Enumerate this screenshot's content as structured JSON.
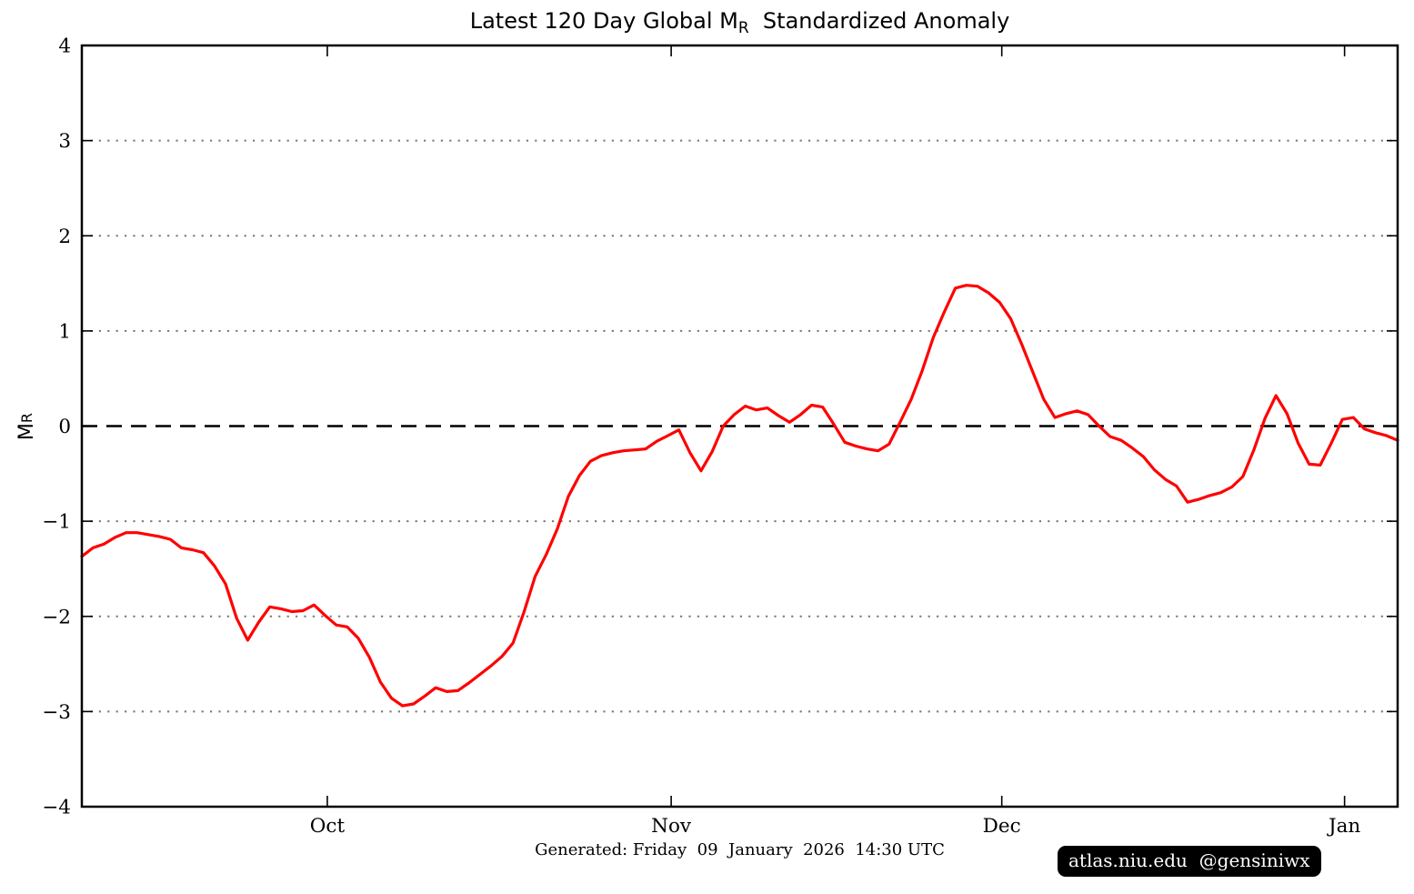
{
  "title": {
    "prefix": "Latest 120 Day Global M",
    "subscript": "R",
    "suffix": "  Standardized Anomaly"
  },
  "y_axis": {
    "label_main": "M",
    "label_subscript": "R"
  },
  "footer": {
    "generated": "Generated: Friday  09  January  2026  14:30 UTC",
    "badge": "atlas.niu.edu  @gensiniwx"
  },
  "colors": {
    "line": "#ff0000",
    "grid_dotted": "#787878",
    "zero_line": "#000000",
    "frame": "#000000",
    "badge_bg": "#000000",
    "badge_text": "#ffffff"
  },
  "chart_data": {
    "type": "line",
    "title": "Latest 120 Day Global M_R Standardized Anomaly",
    "xlabel": "",
    "ylabel": "M_R",
    "ylim": [
      -4,
      4
    ],
    "x_unit": "day index, 0-119 (daily, ~Sep 9 through Jan 7)",
    "x_tick_labels": [
      "Oct",
      "Nov",
      "Dec",
      "Jan"
    ],
    "x_tick_positions_days": [
      22.2,
      53.3,
      83.2,
      114.2
    ],
    "y_ticks": [
      -4,
      -3,
      -2,
      -1,
      0,
      1,
      2,
      3,
      4
    ],
    "y_tick_labels": [
      "−4",
      "−3",
      "−2",
      "−1",
      "0",
      "1",
      "2",
      "3",
      "4"
    ],
    "dotted_gridlines_at": [
      -3,
      -2,
      -1,
      1,
      2,
      3
    ],
    "dashed_reference_line_at": 0,
    "legend_position": "none",
    "grid": "dotted horizontal only",
    "series": [
      {
        "name": "Global MR standardized anomaly",
        "color": "#ff0000",
        "values": [
          -1.37,
          -1.28,
          -1.24,
          -1.17,
          -1.12,
          -1.12,
          -1.14,
          -1.16,
          -1.19,
          -1.28,
          -1.3,
          -1.33,
          -1.47,
          -1.66,
          -2.02,
          -2.25,
          -2.06,
          -1.9,
          -1.92,
          -1.95,
          -1.94,
          -1.88,
          -1.99,
          -2.09,
          -2.11,
          -2.23,
          -2.43,
          -2.69,
          -2.86,
          -2.94,
          -2.92,
          -2.84,
          -2.75,
          -2.79,
          -2.78,
          -2.7,
          -2.61,
          -2.52,
          -2.42,
          -2.28,
          -1.95,
          -1.58,
          -1.35,
          -1.08,
          -0.74,
          -0.52,
          -0.37,
          -0.31,
          -0.28,
          -0.26,
          -0.25,
          -0.24,
          -0.16,
          -0.1,
          -0.04,
          -0.28,
          -0.47,
          -0.27,
          0.0,
          0.12,
          0.21,
          0.17,
          0.19,
          0.11,
          0.04,
          0.12,
          0.22,
          0.2,
          0.02,
          -0.17,
          -0.21,
          -0.24,
          -0.26,
          -0.19,
          0.04,
          0.28,
          0.58,
          0.93,
          1.2,
          1.45,
          1.48,
          1.47,
          1.4,
          1.3,
          1.13,
          0.86,
          0.57,
          0.28,
          0.09,
          0.13,
          0.16,
          0.12,
          0.0,
          -0.11,
          -0.15,
          -0.23,
          -0.32,
          -0.46,
          -0.56,
          -0.63,
          -0.8,
          -0.77,
          -0.73,
          -0.7,
          -0.64,
          -0.53,
          -0.25,
          0.08,
          0.32,
          0.13,
          -0.18,
          -0.4,
          -0.41,
          -0.18,
          0.07,
          0.09,
          -0.03,
          -0.07,
          -0.1,
          -0.15
        ]
      }
    ]
  }
}
